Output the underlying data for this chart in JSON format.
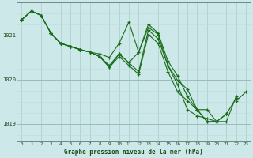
{
  "bg_color": "#cce8e8",
  "grid_color_v": "#aacccc",
  "grid_color_h_minor": "#bbdddd",
  "grid_color_h_major": "#99bbbb",
  "line_color": "#1a6b1a",
  "title": "Graphe pression niveau de la mer (hPa)",
  "ylim": [
    1018.6,
    1021.75
  ],
  "xlim": [
    -0.5,
    23.5
  ],
  "yticks": [
    1019,
    1020,
    1021
  ],
  "xticks": [
    0,
    1,
    2,
    3,
    4,
    5,
    6,
    7,
    8,
    9,
    10,
    11,
    12,
    13,
    14,
    15,
    16,
    17,
    18,
    19,
    20,
    21,
    22,
    23
  ],
  "series": [
    [
      1021.35,
      1021.55,
      1021.45,
      1021.05,
      1020.82,
      1020.75,
      1020.68,
      1020.62,
      1020.58,
      1020.5,
      1020.82,
      1021.3,
      1020.62,
      1021.25,
      1021.05,
      1020.42,
      1020.08,
      1019.62,
      1019.32,
      1019.05,
      1019.05,
      1019.22,
      null,
      null
    ],
    [
      1021.35,
      1021.55,
      1021.45,
      1021.05,
      1020.82,
      1020.75,
      1020.68,
      1020.62,
      1020.52,
      1020.32,
      1020.58,
      1020.38,
      1020.18,
      1021.12,
      1020.92,
      1020.32,
      1019.98,
      1019.78,
      1019.32,
      1019.32,
      1019.05,
      1019.05,
      1019.62,
      null
    ],
    [
      1021.35,
      1021.55,
      1021.45,
      1021.05,
      1020.82,
      1020.75,
      1020.68,
      1020.62,
      1020.52,
      1020.28,
      1020.52,
      1020.32,
      1020.12,
      1021.02,
      1020.82,
      1020.18,
      1019.72,
      1019.52,
      1019.32,
      1019.05,
      1019.05,
      1019.22,
      1019.58,
      null
    ],
    [
      1021.35,
      1021.55,
      1021.45,
      1021.05,
      1020.82,
      1020.75,
      1020.68,
      1020.62,
      1020.52,
      1020.28,
      1020.58,
      1020.38,
      1020.62,
      1021.18,
      1021.02,
      1020.32,
      1019.88,
      1019.32,
      1019.18,
      1019.12,
      1019.05,
      null,
      1019.52,
      1019.72
    ]
  ]
}
